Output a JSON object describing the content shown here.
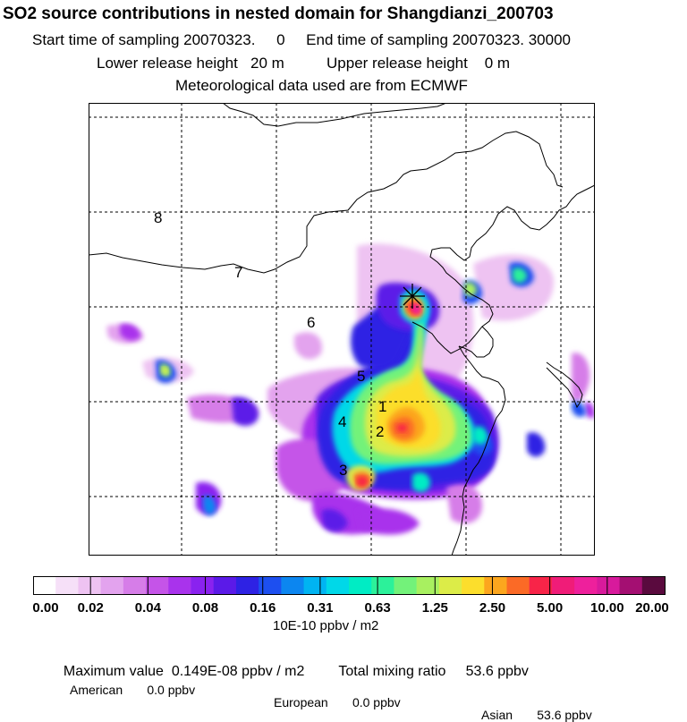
{
  "header": {
    "title": "SO2 source contributions in nested domain for Shangdianzi_200703",
    "line1": "Start time of sampling 20070323.     0     End time of sampling 20070323. 30000",
    "line2": "Lower release height   20 m          Upper release height    0 m",
    "line3": "Meteorological data used are from ECMWF"
  },
  "chart_data": {
    "type": "heatmap",
    "title": "SO2 source contributions in nested domain for Shangdianzi_200703",
    "station_marker": "asterisk",
    "region_labels": [
      "1",
      "2",
      "3",
      "4",
      "5",
      "6",
      "7",
      "8"
    ],
    "color_scale": {
      "tick_labels": [
        "0.00",
        "0.02",
        "0.04",
        "0.08",
        "0.16",
        "0.31",
        "0.63",
        "1.25",
        "2.50",
        "5.00",
        "10.00",
        "20.00"
      ],
      "colors": [
        "#ffffff",
        "#f6e0f8",
        "#eec3f2",
        "#e3a3ee",
        "#d67de8",
        "#c554e8",
        "#a933ec",
        "#8a22ef",
        "#5b1ae8",
        "#2e22e4",
        "#1d4ff0",
        "#0c86f0",
        "#00b4f2",
        "#00d8e8",
        "#00ecc4",
        "#2cf19a",
        "#73f27a",
        "#a8f060",
        "#dcec48",
        "#fcde2c",
        "#fca61e",
        "#fb6a26",
        "#f82448",
        "#f01c78",
        "#ee209c",
        "#d81a9c",
        "#a40f72",
        "#5a0a3e"
      ],
      "units": "10E-10 ppbv / m2"
    },
    "summary": {
      "maximum_value": "Maximum value  0.149E-08 ppbv / m2",
      "total_mixing_ratio": "Total mixing ratio     53.6 ppbv",
      "american": "American       0.0 ppbv",
      "european": "European       0.0 ppbv",
      "asian": "Asian       53.6 ppbv"
    }
  }
}
